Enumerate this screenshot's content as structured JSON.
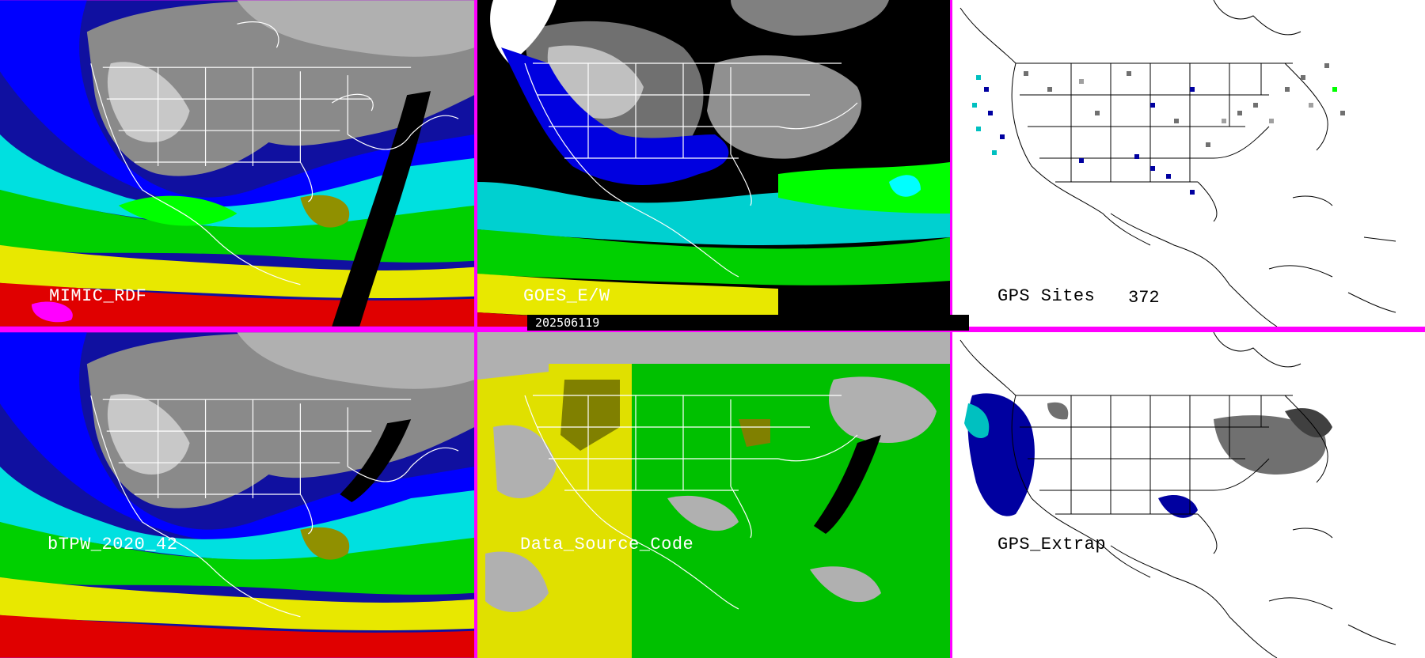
{
  "panels": {
    "mimic": {
      "label": "MIMIC_RDF"
    },
    "goes": {
      "label": "GOES_E/W"
    },
    "gps": {
      "label": "GPS Sites",
      "count": "372"
    },
    "btpw": {
      "label": "bTPW_2020_42"
    },
    "dsc": {
      "label": "Data_Source_Code"
    },
    "extrap": {
      "label": "GPS_Extrap"
    }
  },
  "timestamp": "202506119",
  "colors": {
    "border": "#ff00ff",
    "tpw_scale": [
      "#808080",
      "#000080",
      "#0000ff",
      "#00ffff",
      "#00c000",
      "#00ff00",
      "#808000",
      "#ffff00",
      "#ff0000",
      "#ff00ff"
    ],
    "dsc_gps": "#808000",
    "dsc_goes": "#00c000",
    "dsc_mimic": "#e0e000",
    "dsc_none": "#b0b0b0"
  }
}
